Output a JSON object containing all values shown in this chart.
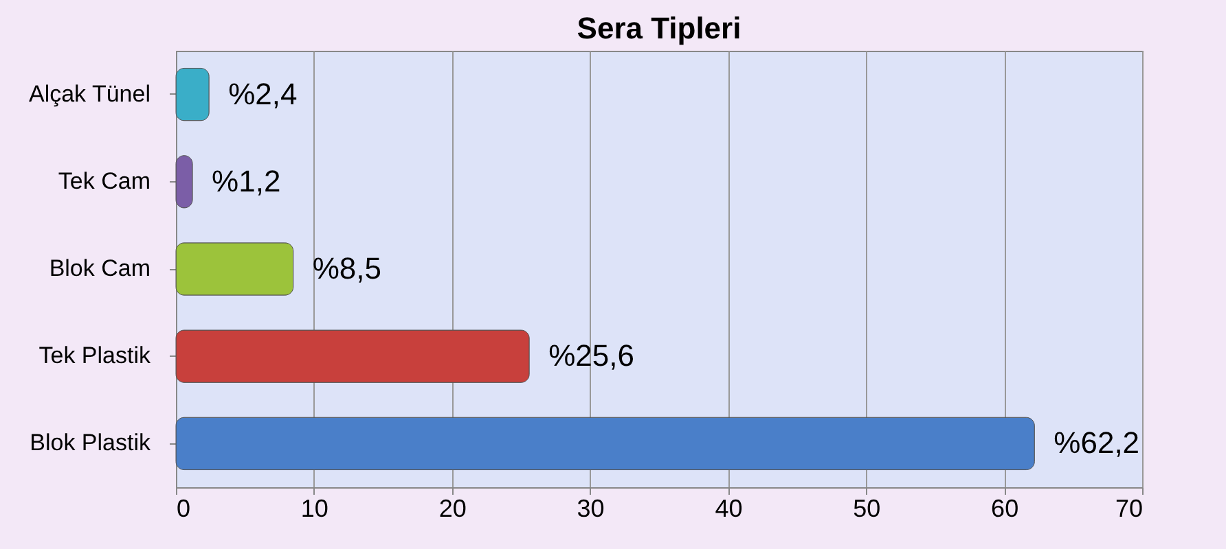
{
  "chart_data": {
    "type": "bar",
    "title": "Sera Tipleri",
    "orientation": "horizontal",
    "categories": [
      "Alçak Tünel",
      "Tek Cam",
      "Blok Cam",
      "Tek Plastik",
      "Blok Plastik"
    ],
    "values": [
      2.4,
      1.2,
      8.5,
      25.6,
      62.2
    ],
    "colors": [
      "#3aaec8",
      "#7b5ea7",
      "#9cc33b",
      "#c8403c",
      "#4a7fc9"
    ],
    "value_labels": [
      "%2,4",
      "%1,2",
      "%8,5",
      "%25,6",
      "%62,2"
    ],
    "xlim": [
      0,
      70
    ],
    "xticks": [
      0,
      10,
      20,
      30,
      40,
      50,
      60,
      70
    ],
    "grid": "x"
  }
}
